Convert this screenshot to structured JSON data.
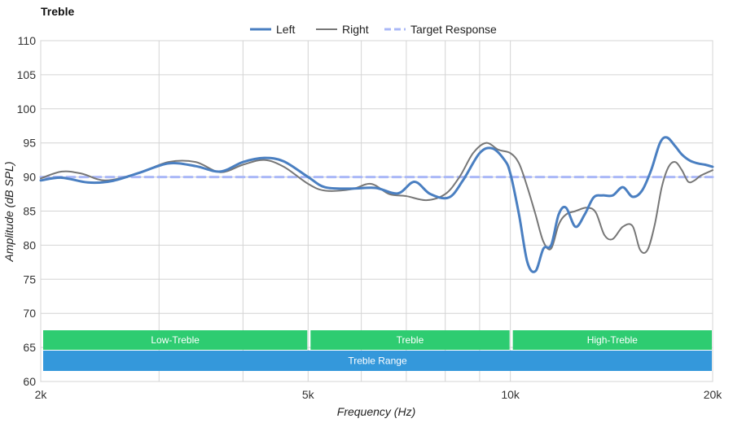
{
  "chart_data": {
    "type": "line",
    "title": "Treble",
    "xlabel": "Frequency (Hz)",
    "ylabel": "Amplitude (dB SPL)",
    "x_scale": "log",
    "xlim": [
      2000,
      20000
    ],
    "ylim": [
      60,
      110
    ],
    "x_ticks": [
      {
        "value": 2000,
        "label": "2k"
      },
      {
        "value": 5000,
        "label": "5k"
      },
      {
        "value": 10000,
        "label": "10k"
      },
      {
        "value": 20000,
        "label": "20k"
      }
    ],
    "y_ticks": [
      60,
      65,
      70,
      75,
      80,
      85,
      90,
      95,
      100,
      105,
      110
    ],
    "grid": true,
    "legend_position": "top-center",
    "series": [
      {
        "name": "Left",
        "color": "#4a7fc1",
        "style": "thick-solid",
        "x": [
          2000,
          2150,
          2350,
          2550,
          2800,
          3100,
          3400,
          3700,
          4000,
          4300,
          4600,
          5000,
          5300,
          5800,
          6300,
          6800,
          7200,
          7600,
          8100,
          8500,
          9000,
          9400,
          9800,
          10000,
          10300,
          10600,
          10900,
          11200,
          11500,
          11800,
          12100,
          12500,
          12900,
          13300,
          13700,
          14200,
          14700,
          15200,
          15700,
          16200,
          16700,
          17100,
          17600,
          18000,
          18500,
          19000,
          19500,
          20000
        ],
        "y": [
          89.5,
          89.9,
          89.2,
          89.4,
          90.6,
          92.0,
          91.6,
          90.8,
          92.2,
          92.8,
          92.3,
          90.0,
          88.5,
          88.3,
          88.4,
          87.6,
          89.3,
          87.5,
          87.0,
          89.5,
          93.5,
          94.2,
          92.5,
          90.5,
          84.5,
          77.5,
          76.2,
          79.5,
          80.0,
          84.5,
          85.5,
          82.7,
          84.5,
          87.0,
          87.3,
          87.3,
          88.5,
          87.1,
          88.0,
          91.0,
          95.0,
          95.8,
          94.5,
          93.3,
          92.4,
          92.0,
          91.8,
          91.5
        ]
      },
      {
        "name": "Right",
        "color": "#777777",
        "style": "thin-solid",
        "x": [
          2000,
          2150,
          2300,
          2500,
          2800,
          3100,
          3400,
          3700,
          4000,
          4300,
          4600,
          5000,
          5300,
          5800,
          6200,
          6600,
          7000,
          7500,
          8000,
          8400,
          8800,
          9200,
          9600,
          10000,
          10300,
          10600,
          10900,
          11200,
          11500,
          11800,
          12100,
          12500,
          13000,
          13400,
          13800,
          14200,
          14700,
          15200,
          15600,
          16000,
          16400,
          16800,
          17200,
          17600,
          18000,
          18400,
          18800,
          19200,
          20000
        ],
        "y": [
          89.8,
          90.8,
          90.5,
          89.5,
          90.6,
          92.2,
          92.2,
          90.7,
          91.8,
          92.5,
          91.5,
          89.0,
          88.0,
          88.2,
          89.0,
          87.5,
          87.2,
          86.6,
          87.5,
          90.0,
          93.5,
          95.0,
          94.0,
          93.5,
          92.0,
          88.5,
          84.5,
          80.5,
          79.5,
          83.0,
          84.5,
          85.0,
          85.5,
          84.8,
          81.5,
          80.9,
          82.7,
          82.8,
          79.3,
          79.3,
          83.0,
          88.5,
          91.5,
          92.2,
          91.0,
          89.3,
          89.5,
          90.2,
          91.0
        ]
      },
      {
        "name": "Target Response",
        "color": "#aab8f7",
        "style": "dashed",
        "x": [
          2000,
          20000
        ],
        "y": [
          90,
          90
        ]
      }
    ],
    "bands": [
      {
        "label": "Low-Treble",
        "from": 2000,
        "to": 5000,
        "row": 1,
        "color": "#2ecc71"
      },
      {
        "label": "Treble",
        "from": 5000,
        "to": 10000,
        "row": 1,
        "color": "#2ecc71"
      },
      {
        "label": "High-Treble",
        "from": 10000,
        "to": 20000,
        "row": 1,
        "color": "#2ecc71"
      },
      {
        "label": "Treble Range",
        "from": 2000,
        "to": 20000,
        "row": 2,
        "color": "#3498db"
      }
    ]
  }
}
